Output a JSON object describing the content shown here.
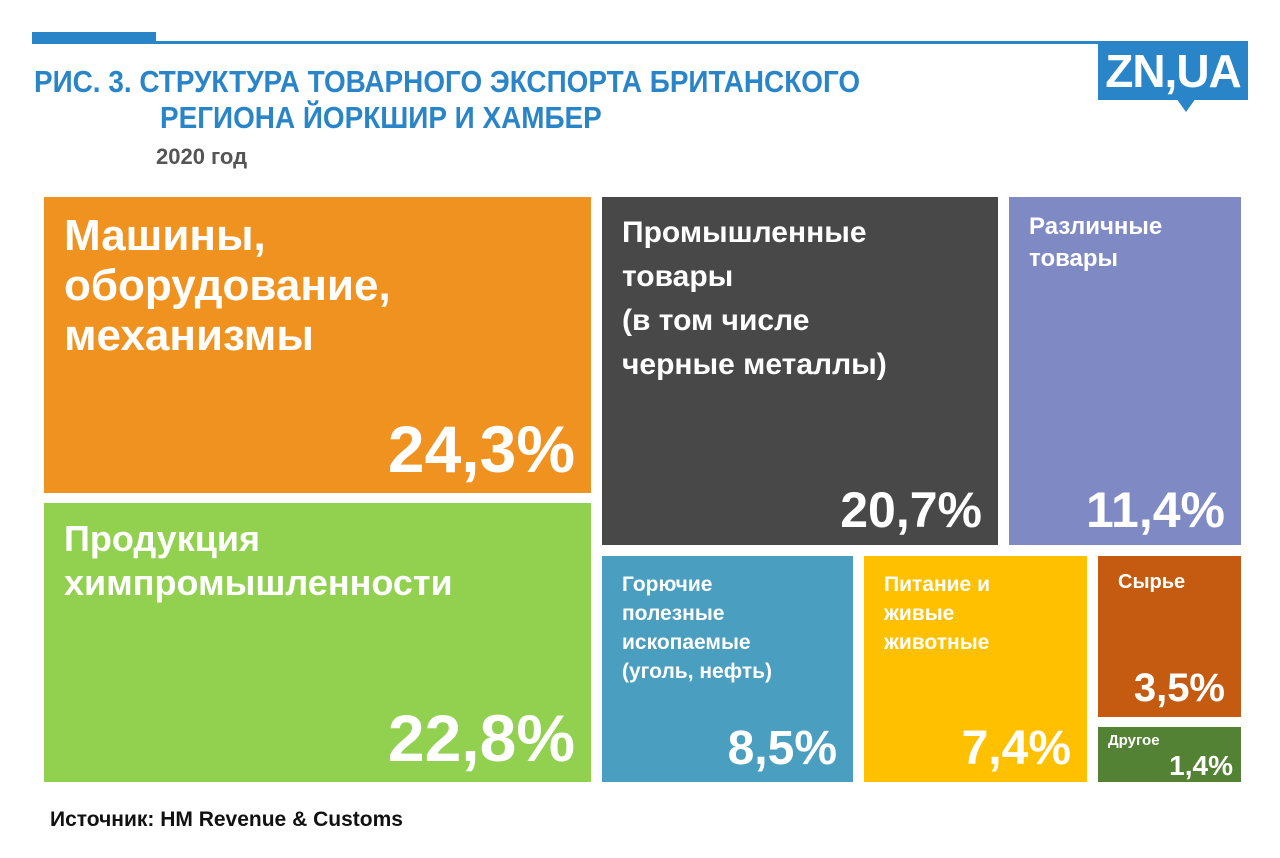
{
  "header": {
    "title_line1": "РИС. 3. СТРУКТУРА ТОВАРНОГО ЭКСПОРТА БРИТАНСКОГО",
    "title_line2": "РЕГИОНА ЙОРКШИР И ХАМБЕР",
    "year": "2020 год",
    "logo": "ZN,UA"
  },
  "source": "Источник: HM Revenue & Customs",
  "colors": {
    "title": "#2a85c8"
  },
  "chart_data": {
    "type": "treemap",
    "title": "РИС. 3. СТРУКТУРА ТОВАРНОГО ЭКСПОРТА БРИТАНСКОГО РЕГИОНА ЙОРКШИР И ХАМБЕР",
    "subtitle": "2020 год",
    "unit": "%",
    "items": [
      {
        "label": "Машины,\nоборудование,\nмеханизмы",
        "value": 24.3,
        "text": "24,3%",
        "color": "#ef9220"
      },
      {
        "label": "Продукция\nхимпромышленности",
        "value": 22.8,
        "text": "22,8%",
        "color": "#92d050"
      },
      {
        "label": "Промышленные\nтовары\n(в том числе\nчерные металлы)",
        "value": 20.7,
        "text": "20,7%",
        "color": "#484848"
      },
      {
        "label": "Различные\nтовары",
        "value": 11.4,
        "text": "11,4%",
        "color": "#7f89c4"
      },
      {
        "label": "Горючие\nполезные\nископаемые\n(уголь, нефть)",
        "value": 8.5,
        "text": "8,5%",
        "color": "#4a9fc0"
      },
      {
        "label": "Питание и\nживые\nживотные",
        "value": 7.4,
        "text": "7,4%",
        "color": "#ffc000"
      },
      {
        "label": "Сырье",
        "value": 3.5,
        "text": "3,5%",
        "color": "#c55a11"
      },
      {
        "label": "Другое",
        "value": 1.4,
        "text": "1,4%",
        "color": "#548235"
      }
    ]
  }
}
